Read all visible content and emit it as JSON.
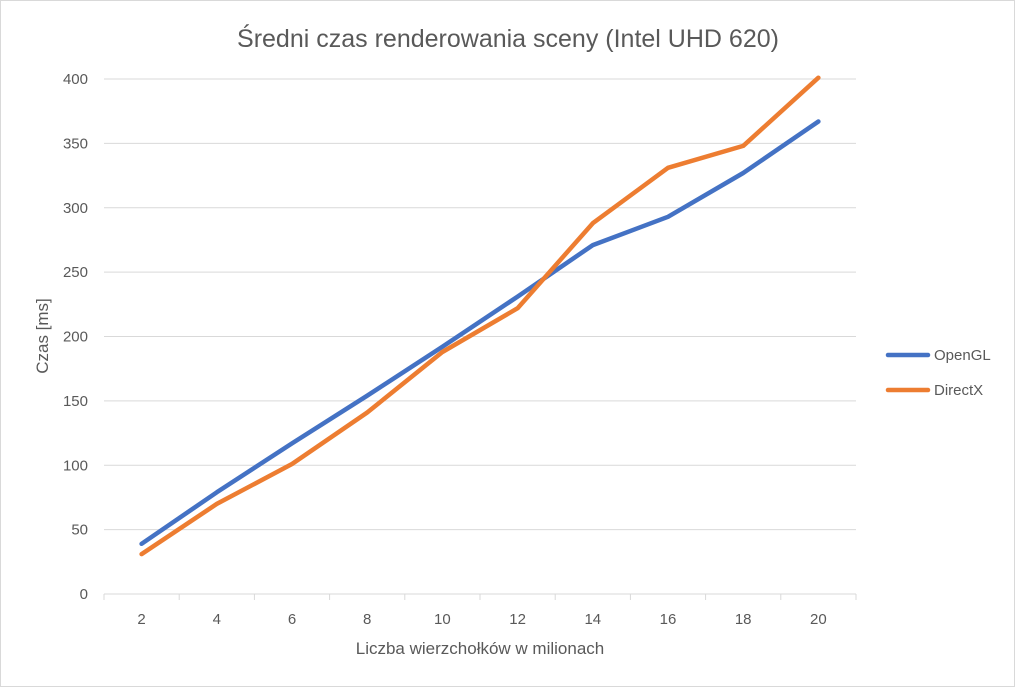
{
  "chart_data": {
    "type": "line",
    "title": "Średni czas renderowania sceny (Intel UHD 620)",
    "xlabel": "Liczba wierzchołków w milionach",
    "ylabel": "Czas  [ms]",
    "categories": [
      "2",
      "4",
      "6",
      "8",
      "10",
      "12",
      "14",
      "16",
      "18",
      "20"
    ],
    "ylim": [
      0,
      400
    ],
    "yticks": [
      0,
      50,
      100,
      150,
      200,
      250,
      300,
      350,
      400
    ],
    "grid": true,
    "legend_position": "right",
    "series": [
      {
        "name": "OpenGL",
        "color": "#4472c4",
        "values": [
          39,
          79,
          117,
          154,
          192,
          231,
          271,
          293,
          327,
          367
        ]
      },
      {
        "name": "DirectX",
        "color": "#ed7d31",
        "values": [
          31,
          70,
          101,
          141,
          188,
          222,
          288,
          331,
          348,
          401
        ]
      }
    ]
  }
}
